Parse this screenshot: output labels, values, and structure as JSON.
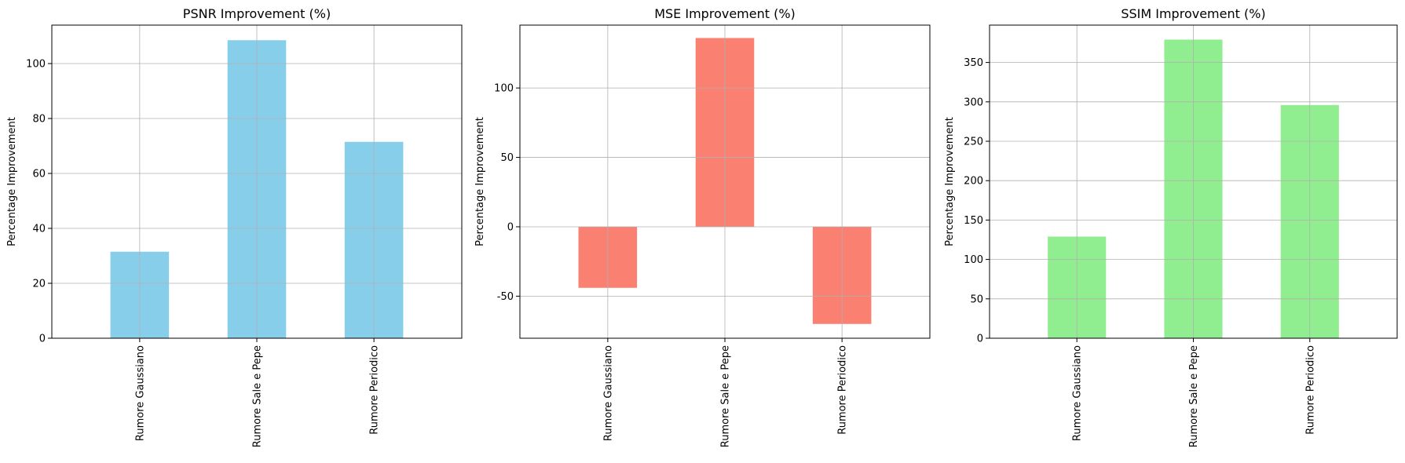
{
  "chart_data": [
    {
      "type": "bar",
      "title": "PSNR Improvement (%)",
      "xlabel": "",
      "ylabel": "Percentage Improvement",
      "categories": [
        "Rumore Gaussiano",
        "Rumore Sale e Pepe",
        "Rumore Periodico"
      ],
      "values": [
        31.5,
        108.5,
        71.5
      ],
      "ylim": [
        0,
        114
      ],
      "yticks": [
        0,
        20,
        40,
        60,
        80,
        100
      ],
      "color": "#87ceeb",
      "grid": true
    },
    {
      "type": "bar",
      "title": "MSE Improvement (%)",
      "xlabel": "",
      "ylabel": "Percentage Improvement",
      "categories": [
        "Rumore Gaussiano",
        "Rumore Sale e Pepe",
        "Rumore Periodico"
      ],
      "values": [
        -44,
        136,
        -70
      ],
      "ylim": [
        -80.3,
        145.3
      ],
      "yticks": [
        -50,
        0,
        50,
        100
      ],
      "color": "#fa8072",
      "grid": true
    },
    {
      "type": "bar",
      "title": "SSIM Improvement (%)",
      "xlabel": "",
      "ylabel": "Percentage Improvement",
      "categories": [
        "Rumore Gaussiano",
        "Rumore Sale e Pepe",
        "Rumore Periodico"
      ],
      "values": [
        129,
        379,
        296
      ],
      "ylim": [
        0,
        397.4
      ],
      "yticks": [
        0,
        50,
        100,
        150,
        200,
        250,
        300,
        350
      ],
      "color": "#90ee90",
      "grid": true
    }
  ]
}
